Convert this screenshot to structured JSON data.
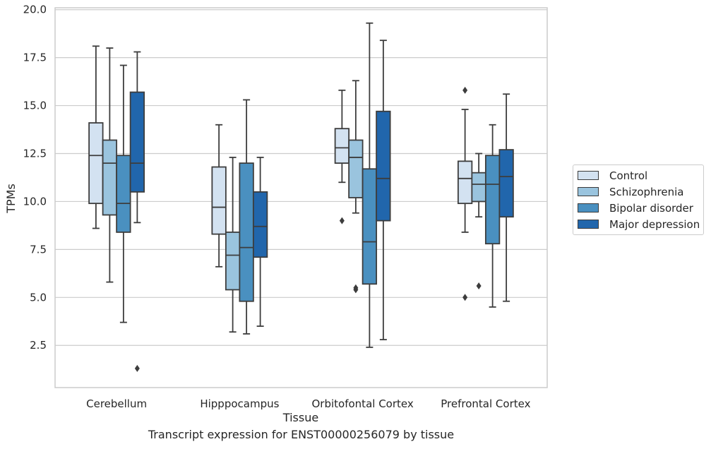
{
  "chart_data": {
    "type": "box",
    "xlabel": "Tissue",
    "ylabel": "TPMs",
    "ylim": [
      0.3,
      20.1
    ],
    "yticks": [
      2.5,
      5.0,
      7.5,
      10.0,
      12.5,
      15.0,
      17.5,
      20.0
    ],
    "ytick_labels": [
      "2.5",
      "5.0",
      "7.5",
      "10.0",
      "12.5",
      "15.0",
      "17.5",
      "20.0"
    ],
    "grid": "horizontal",
    "legend_position": "right",
    "categories": [
      "Cerebellum",
      "Hipppocampus",
      "Orbitofontal Cortex",
      "Prefrontal Cortex"
    ],
    "series": [
      {
        "name": "Control",
        "color": "#d3e2f1",
        "boxes": [
          {
            "whisker_low": 8.6,
            "q1": 9.9,
            "median": 12.4,
            "q3": 14.1,
            "whisker_high": 18.1,
            "outliers": []
          },
          {
            "whisker_low": 6.6,
            "q1": 8.3,
            "median": 9.7,
            "q3": 11.8,
            "whisker_high": 14.0,
            "outliers": []
          },
          {
            "whisker_low": 11.0,
            "q1": 12.0,
            "median": 12.8,
            "q3": 13.8,
            "whisker_high": 15.8,
            "outliers": [
              9.0
            ]
          },
          {
            "whisker_low": 8.4,
            "q1": 9.9,
            "median": 11.2,
            "q3": 12.1,
            "whisker_high": 14.8,
            "outliers": [
              15.8,
              5.0
            ]
          }
        ]
      },
      {
        "name": "Schizophrenia",
        "color": "#9ac4de",
        "boxes": [
          {
            "whisker_low": 5.8,
            "q1": 9.3,
            "median": 12.0,
            "q3": 13.2,
            "whisker_high": 18.0,
            "outliers": []
          },
          {
            "whisker_low": 3.2,
            "q1": 5.4,
            "median": 7.2,
            "q3": 8.4,
            "whisker_high": 12.3,
            "outliers": []
          },
          {
            "whisker_low": 9.4,
            "q1": 10.2,
            "median": 12.3,
            "q3": 13.2,
            "whisker_high": 16.3,
            "outliers": [
              5.5,
              5.4
            ]
          },
          {
            "whisker_low": 9.2,
            "q1": 10.0,
            "median": 10.9,
            "q3": 11.5,
            "whisker_high": 12.5,
            "outliers": [
              5.6
            ]
          }
        ]
      },
      {
        "name": "Bipolar disorder",
        "color": "#4a90c0",
        "boxes": [
          {
            "whisker_low": 3.7,
            "q1": 8.4,
            "median": 9.9,
            "q3": 12.4,
            "whisker_high": 17.1,
            "outliers": []
          },
          {
            "whisker_low": 3.1,
            "q1": 4.8,
            "median": 7.6,
            "q3": 12.0,
            "whisker_high": 15.3,
            "outliers": []
          },
          {
            "whisker_low": 2.4,
            "q1": 5.7,
            "median": 7.9,
            "q3": 11.7,
            "whisker_high": 19.3,
            "outliers": []
          },
          {
            "whisker_low": 4.5,
            "q1": 7.8,
            "median": 10.9,
            "q3": 12.4,
            "whisker_high": 14.0,
            "outliers": []
          }
        ]
      },
      {
        "name": "Major depression",
        "color": "#2166ac",
        "boxes": [
          {
            "whisker_low": 8.9,
            "q1": 10.5,
            "median": 12.0,
            "q3": 15.7,
            "whisker_high": 17.8,
            "outliers": [
              1.3
            ]
          },
          {
            "whisker_low": 3.5,
            "q1": 7.1,
            "median": 8.7,
            "q3": 10.5,
            "whisker_high": 12.3,
            "outliers": []
          },
          {
            "whisker_low": 2.8,
            "q1": 9.0,
            "median": 11.2,
            "q3": 14.7,
            "whisker_high": 18.4,
            "outliers": []
          },
          {
            "whisker_low": 4.8,
            "q1": 9.2,
            "median": 11.3,
            "q3": 12.7,
            "whisker_high": 15.6,
            "outliers": []
          }
        ]
      }
    ]
  },
  "caption": "Transcript expression for ENST00000256079 by tissue"
}
